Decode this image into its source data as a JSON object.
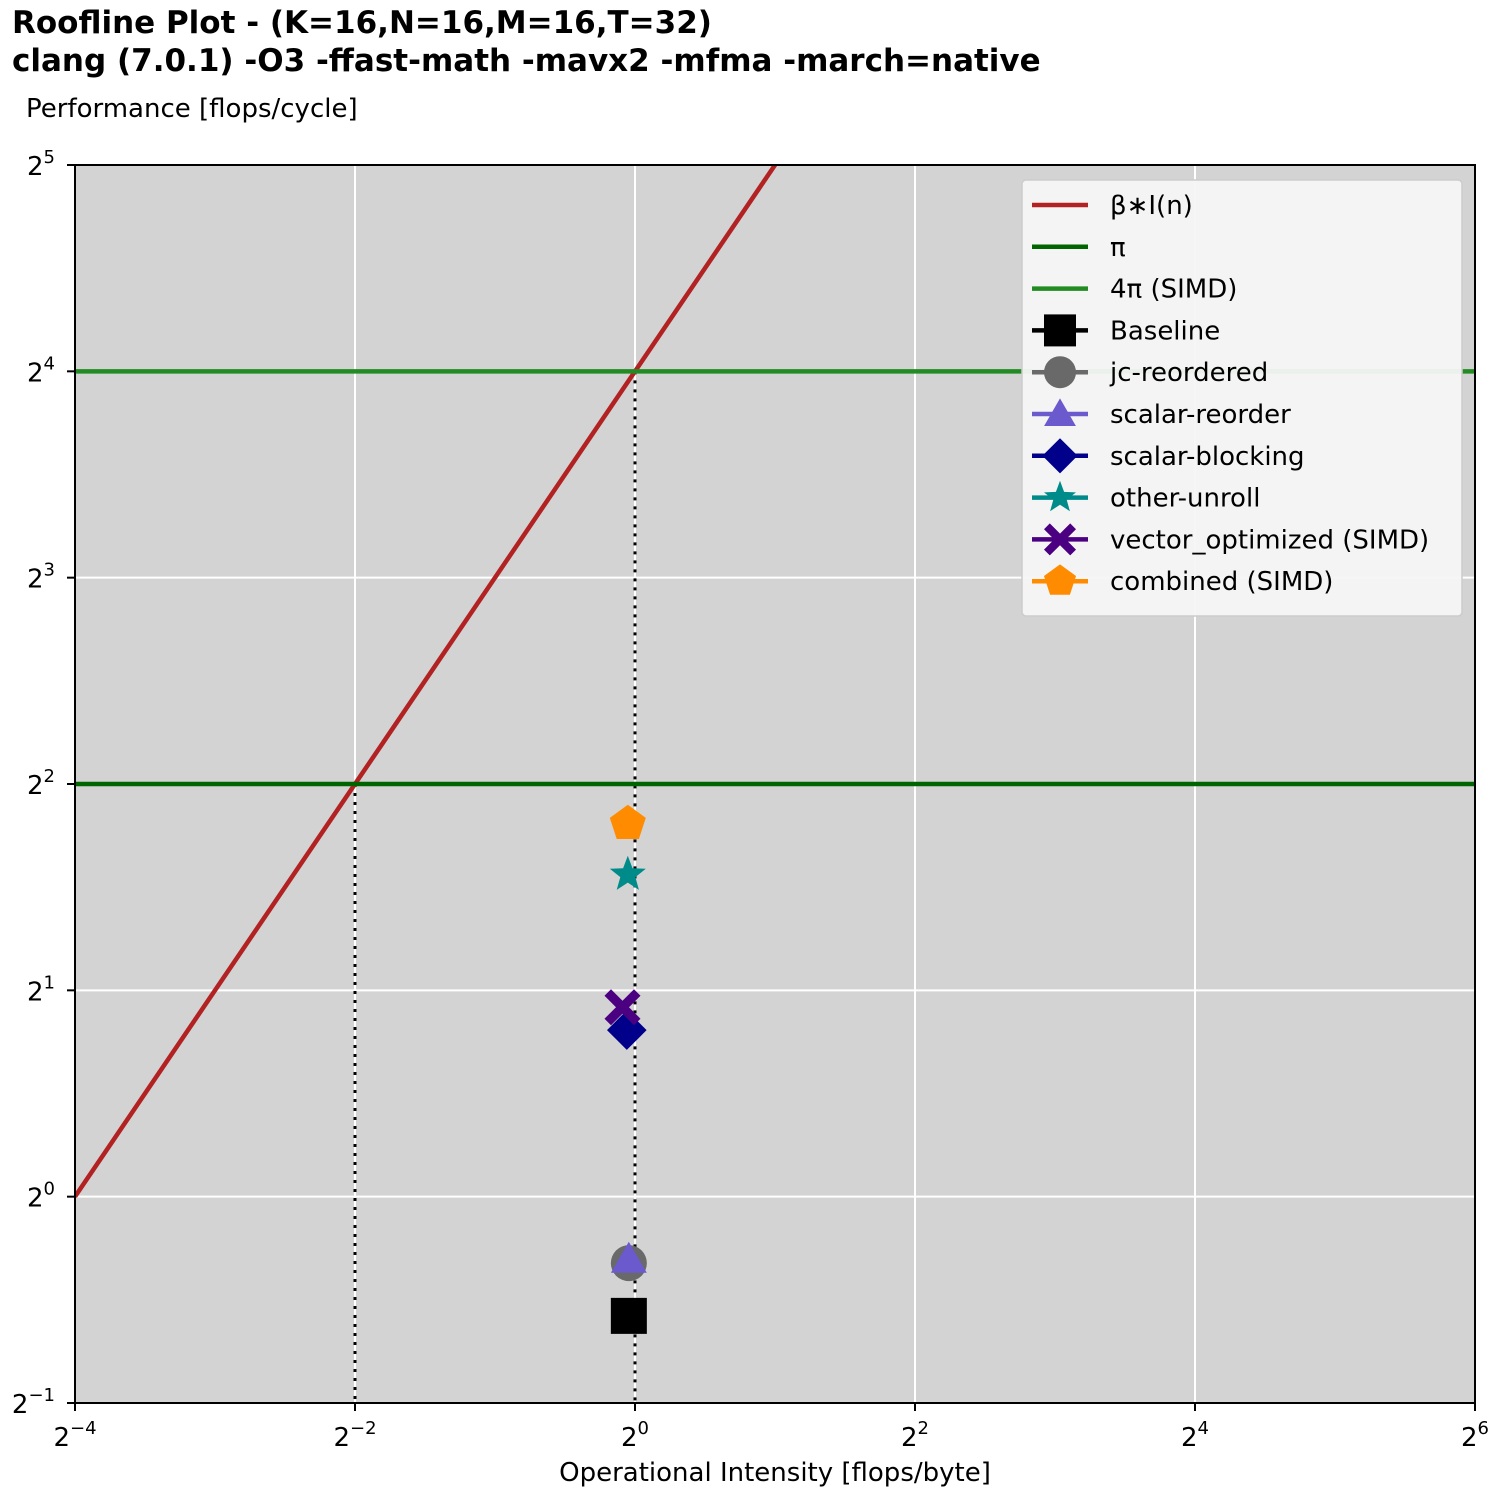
{
  "chart_data": {
    "type": "scatter",
    "title": [
      "Roofline Plot - (K=16,N=16,M=16,T=32)",
      "clang (7.0.1) -O3 -ffast-math -mavx2 -mfma -march=native"
    ],
    "xlabel": "Operational Intensity [flops/byte]",
    "ylabel": "Performance [flops/cycle]",
    "x_scale": "log2",
    "y_scale": "log2",
    "xlim": [
      0.0625,
      64
    ],
    "ylim": [
      0.5,
      32
    ],
    "x_ticks": [
      {
        "base": "2",
        "exp": "−4",
        "value": 0.0625
      },
      {
        "base": "2",
        "exp": "−2",
        "value": 0.25
      },
      {
        "base": "2",
        "exp": "0",
        "value": 1
      },
      {
        "base": "2",
        "exp": "2",
        "value": 4
      },
      {
        "base": "2",
        "exp": "4",
        "value": 16
      },
      {
        "base": "2",
        "exp": "6",
        "value": 64
      }
    ],
    "y_ticks": [
      {
        "base": "2",
        "exp": "−1",
        "value": 0.5
      },
      {
        "base": "2",
        "exp": "0",
        "value": 1
      },
      {
        "base": "2",
        "exp": "1",
        "value": 2
      },
      {
        "base": "2",
        "exp": "2",
        "value": 4
      },
      {
        "base": "2",
        "exp": "3",
        "value": 8
      },
      {
        "base": "2",
        "exp": "4",
        "value": 16
      },
      {
        "base": "2",
        "exp": "5",
        "value": 32
      }
    ],
    "grid": true,
    "legend_position": "top-right",
    "lines": [
      {
        "name": "β∗I(n)",
        "kind": "diagonal",
        "slope": 16,
        "color": "#b22222"
      },
      {
        "name": "π",
        "kind": "horizontal",
        "y": 4,
        "color": "#006400"
      },
      {
        "name": "4π (SIMD)",
        "kind": "horizontal",
        "y": 16,
        "color": "#228b22"
      }
    ],
    "ridge_markers": [
      {
        "x": 0.25,
        "y": 4
      },
      {
        "x": 1,
        "y": 16
      }
    ],
    "series": [
      {
        "name": "Baseline",
        "marker": "square",
        "color": "#000000",
        "x": 0.97,
        "y": 0.67
      },
      {
        "name": "jc-reordered",
        "marker": "circle",
        "color": "#696969",
        "x": 0.97,
        "y": 0.8
      },
      {
        "name": "scalar-reorder",
        "marker": "triangle",
        "color": "#6a5acd",
        "x": 0.97,
        "y": 0.81
      },
      {
        "name": "scalar-blocking",
        "marker": "diamond",
        "color": "#00008b",
        "x": 0.96,
        "y": 1.75
      },
      {
        "name": "other-unroll",
        "marker": "star",
        "color": "#008b8b",
        "x": 0.965,
        "y": 2.95
      },
      {
        "name": "vector_optimized (SIMD)",
        "marker": "x",
        "color": "#4b0082",
        "x": 0.94,
        "y": 1.89
      },
      {
        "name": "combined (SIMD)",
        "marker": "pentagon",
        "color": "#ff8c00",
        "x": 0.965,
        "y": 3.5
      }
    ]
  }
}
